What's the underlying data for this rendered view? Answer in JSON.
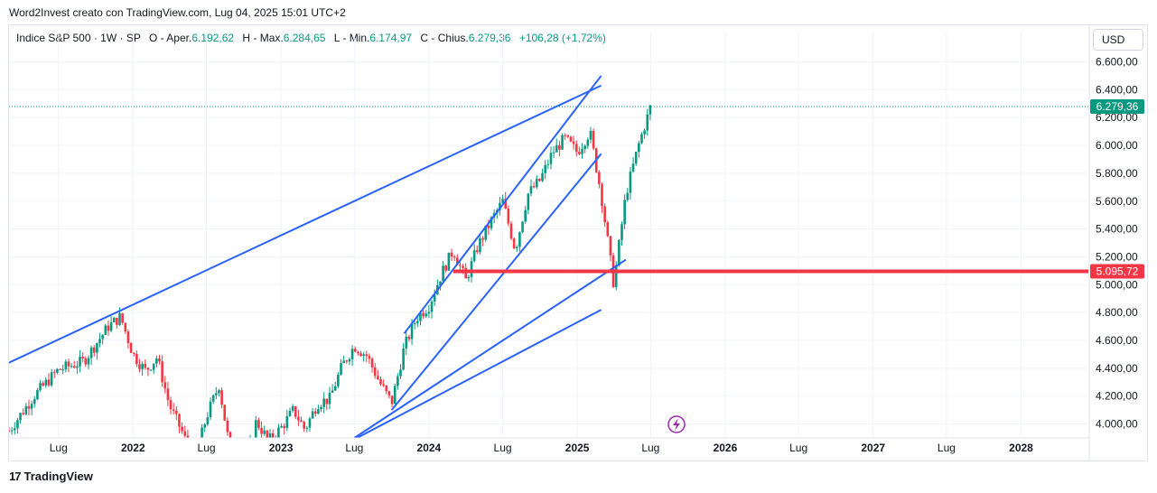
{
  "caption": "Word2Invest creato con TradingView.com, Lug 04, 2025 15:01 UTC+2",
  "legend": {
    "symbol": "Indice S&P 500 · 1W · SP",
    "open_label": "O - Aper.",
    "open": "6.192,62",
    "high_label": "H - Max.",
    "high": "6.284,65",
    "low_label": "L - Min.",
    "low": "6.174,97",
    "close_label": "C - Chius.",
    "close": "6.279,36",
    "change": "+106,28 (+1,72%)"
  },
  "currency": "USD",
  "footer": {
    "brand": "TradingView",
    "logo_glyph": "17"
  },
  "chart_data": {
    "type": "line",
    "title": "Indice S&P 500",
    "ylim": [
      3900,
      6720
    ],
    "y_ticks": [
      {
        "value": 4000,
        "label": "4.000,00"
      },
      {
        "value": 4200,
        "label": "4.200,00"
      },
      {
        "value": 4400,
        "label": "4.400,00"
      },
      {
        "value": 4600,
        "label": "4.600,00"
      },
      {
        "value": 4800,
        "label": "4.800,00"
      },
      {
        "value": 5000,
        "label": "5.000,00"
      },
      {
        "value": 5200,
        "label": "5.200,00"
      },
      {
        "value": 5400,
        "label": "5.400,00"
      },
      {
        "value": 5600,
        "label": "5.600,00"
      },
      {
        "value": 5800,
        "label": "5.800,00"
      },
      {
        "value": 6000,
        "label": "6.000,00"
      },
      {
        "value": 6200,
        "label": "6.200,00"
      },
      {
        "value": 6400,
        "label": "6.400,00"
      },
      {
        "value": 6600,
        "label": "6.600,00"
      }
    ],
    "x_ticks": [
      {
        "date": "2021-07",
        "label": "Lug"
      },
      {
        "date": "2022-01",
        "label": "2022"
      },
      {
        "date": "2022-07",
        "label": "Lug"
      },
      {
        "date": "2023-01",
        "label": "2023"
      },
      {
        "date": "2023-07",
        "label": "Lug"
      },
      {
        "date": "2024-01",
        "label": "2024"
      },
      {
        "date": "2024-07",
        "label": "Lug"
      },
      {
        "date": "2025-01",
        "label": "2025"
      },
      {
        "date": "2025-07",
        "label": "Lug"
      },
      {
        "date": "2026-01",
        "label": "2026"
      },
      {
        "date": "2026-07",
        "label": "Lug"
      },
      {
        "date": "2027-01",
        "label": "2027"
      },
      {
        "date": "2027-07",
        "label": "Lug"
      },
      {
        "date": "2028-01",
        "label": "2028"
      }
    ],
    "price_path": [
      [
        "2021-03",
        3950
      ],
      [
        "2021-05",
        4200
      ],
      [
        "2021-07",
        4390
      ],
      [
        "2021-09",
        4450
      ],
      [
        "2021-11",
        4700
      ],
      [
        "2021-12",
        4770
      ],
      [
        "2022-01",
        4500
      ],
      [
        "2022-02",
        4380
      ],
      [
        "2022-03",
        4480
      ],
      [
        "2022-04",
        4130
      ],
      [
        "2022-05",
        3950
      ],
      [
        "2022-06",
        3730
      ],
      [
        "2022-07",
        4050
      ],
      [
        "2022-08",
        4280
      ],
      [
        "2022-09",
        3750
      ],
      [
        "2022-10",
        3650
      ],
      [
        "2022-11",
        4020
      ],
      [
        "2022-12",
        3880
      ],
      [
        "2023-01",
        3970
      ],
      [
        "2023-02",
        4100
      ],
      [
        "2023-03",
        3960
      ],
      [
        "2023-04",
        4150
      ],
      [
        "2023-05",
        4180
      ],
      [
        "2023-06",
        4420
      ],
      [
        "2023-07",
        4560
      ],
      [
        "2023-08",
        4490
      ],
      [
        "2023-09",
        4300
      ],
      [
        "2023-10",
        4150
      ],
      [
        "2023-11",
        4550
      ],
      [
        "2023-12",
        4760
      ],
      [
        "2024-01",
        4850
      ],
      [
        "2024-02",
        5080
      ],
      [
        "2024-03",
        5250
      ],
      [
        "2024-04",
        5030
      ],
      [
        "2024-05",
        5280
      ],
      [
        "2024-06",
        5450
      ],
      [
        "2024-07",
        5600
      ],
      [
        "2024-08",
        5250
      ],
      [
        "2024-09",
        5650
      ],
      [
        "2024-10",
        5750
      ],
      [
        "2024-11",
        5950
      ],
      [
        "2024-12",
        6050
      ],
      [
        "2025-01",
        5950
      ],
      [
        "2025-02",
        6100
      ],
      [
        "2025-03",
        5650
      ],
      [
        "2025-04",
        5000
      ],
      [
        "2025-05",
        5650
      ],
      [
        "2025-06",
        6000
      ],
      [
        "2025-07",
        6279
      ]
    ],
    "drawings": [
      {
        "type": "trendline",
        "from": [
          "2021-01",
          4360
        ],
        "to": [
          "2025-03",
          6430
        ]
      },
      {
        "type": "trendline",
        "from": [
          "2023-11",
          4650
        ],
        "to": [
          "2025-03",
          6500
        ]
      },
      {
        "type": "trendline",
        "from": [
          "2023-10",
          4100
        ],
        "to": [
          "2025-03",
          5940
        ]
      },
      {
        "type": "trendline",
        "from": [
          "2023-07",
          3900
        ],
        "to": [
          "2025-05",
          5180
        ]
      },
      {
        "type": "trendline",
        "from": [
          "2023-07",
          3890
        ],
        "to": [
          "2025-03",
          4820
        ]
      },
      {
        "type": "horizontal-line",
        "value": 5095.72,
        "label": "5.095,72",
        "color": "#f23645"
      }
    ],
    "last_price": {
      "value": 6279.36,
      "label": "6.279,36",
      "color": "#089981"
    }
  }
}
